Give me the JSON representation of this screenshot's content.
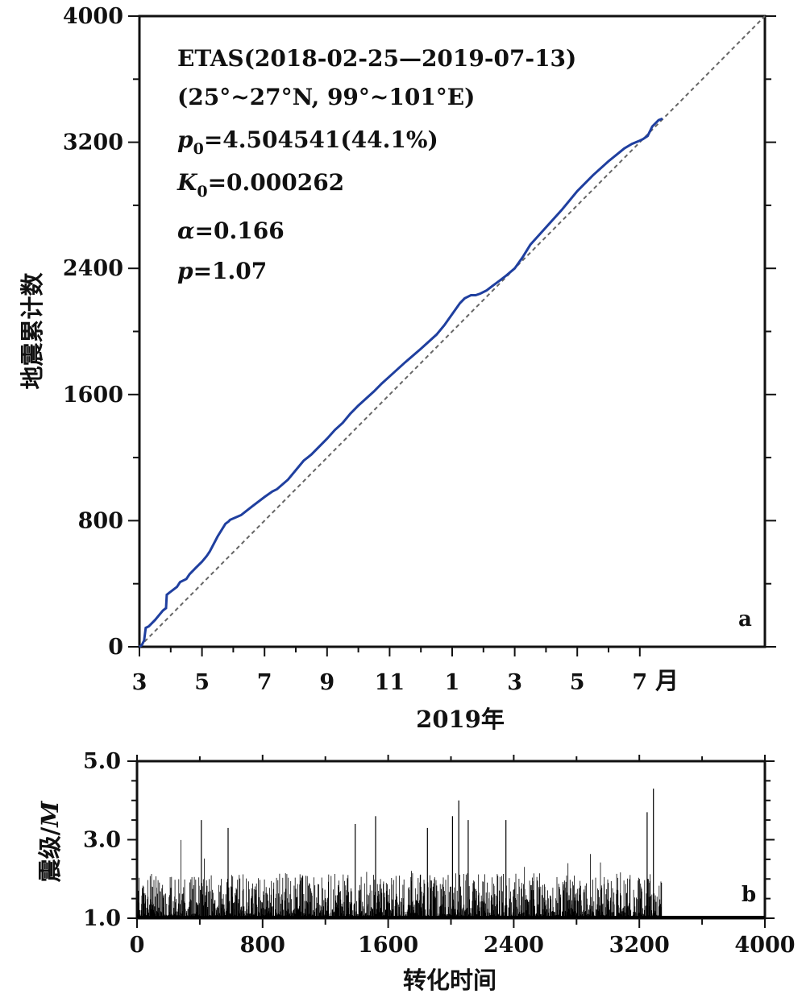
{
  "chart_data": [
    {
      "panel": "a",
      "type": "line",
      "ylabel": "地震累计数",
      "xlabel": "2019年",
      "x_unit_label": "月",
      "xlim": [
        0,
        4000
      ],
      "ylim": [
        0,
        4000
      ],
      "yticks": [
        "0",
        "800",
        "1600",
        "2400",
        "3200",
        "4000"
      ],
      "ytick_values": [
        0,
        800,
        1600,
        2400,
        3200,
        4000
      ],
      "xticks_month_labels": [
        "3",
        "5",
        "7",
        "9",
        "11",
        "1",
        "3",
        "5",
        "7"
      ],
      "xticks_month_positions": [
        0,
        400,
        800,
        1200,
        1600,
        2000,
        2400,
        2800,
        3200
      ],
      "annotations": [
        "ETAS(2018-02-25—2019-07-13)",
        "(25°~27°N, 99°~101°E)",
        "p0=4.504541(44.1%)",
        "K0=0.000262",
        "α=0.166",
        "p=1.07"
      ],
      "annotation_parts": {
        "line1": "ETAS(2018-02-25—2019-07-13)",
        "line2": "(25°~27°N, 99°~101°E)",
        "p0_sym": "p",
        "p0_sub": "0",
        "p0_val": "=4.504541(44.1%)",
        "k0_sym": "K",
        "k0_sub": "0",
        "k0_val": "=0.000262",
        "alpha_sym": "α",
        "alpha_val": "=0.166",
        "p_sym": "p",
        "p_val": "=1.07"
      },
      "series": [
        {
          "style": "solid",
          "color": "#1f3f9f",
          "x": [
            0,
            15,
            30,
            40,
            60,
            100,
            150,
            170,
            175,
            200,
            240,
            260,
            300,
            320,
            360,
            400,
            430,
            450,
            500,
            550,
            570,
            580,
            650,
            720,
            800,
            850,
            880,
            950,
            1050,
            1100,
            1200,
            1250,
            1300,
            1350,
            1400,
            1500,
            1550,
            1600,
            1700,
            1800,
            1900,
            1950,
            2000,
            2050,
            2080,
            2100,
            2120,
            2150,
            2180,
            2220,
            2260,
            2300,
            2340,
            2400,
            2450,
            2500,
            2600,
            2700,
            2800,
            2900,
            3000,
            3050,
            3100,
            3150,
            3200,
            3220,
            3250,
            3280,
            3300,
            3320,
            3345
          ],
          "y": [
            0,
            10,
            40,
            120,
            130,
            170,
            230,
            245,
            330,
            350,
            380,
            410,
            430,
            460,
            500,
            540,
            575,
            605,
            700,
            780,
            795,
            805,
            835,
            890,
            950,
            985,
            1000,
            1060,
            1180,
            1220,
            1320,
            1375,
            1420,
            1480,
            1530,
            1620,
            1670,
            1715,
            1805,
            1890,
            1980,
            2040,
            2110,
            2180,
            2210,
            2220,
            2230,
            2230,
            2240,
            2260,
            2290,
            2320,
            2350,
            2400,
            2470,
            2550,
            2660,
            2770,
            2890,
            2990,
            3080,
            3120,
            3160,
            3190,
            3210,
            3220,
            3240,
            3300,
            3320,
            3340,
            3350
          ]
        },
        {
          "style": "dashed",
          "color": "#666666",
          "x": [
            0,
            4000
          ],
          "y": [
            0,
            4000
          ]
        }
      ]
    },
    {
      "panel": "b",
      "type": "bar",
      "ylabel": "震级/M",
      "ylabel_main": "震级/",
      "ylabel_italic": "M",
      "xlabel": "转化时间",
      "xlim": [
        0,
        4000
      ],
      "ylim": [
        1.0,
        5.0
      ],
      "yticks": [
        "1.0",
        "3.0",
        "5.0"
      ],
      "ytick_values": [
        1.0,
        3.0,
        5.0
      ],
      "xticks": [
        "0",
        "800",
        "1600",
        "2400",
        "3200",
        "4000"
      ],
      "xtick_values": [
        0,
        800,
        1600,
        2400,
        3200,
        4000
      ],
      "data_extent": [
        0,
        3345
      ],
      "baseline": 1.0,
      "color": "#000000",
      "notable_values": [
        {
          "x": 410,
          "y": 3.5
        },
        {
          "x": 580,
          "y": 3.3
        },
        {
          "x": 1390,
          "y": 3.4
        },
        {
          "x": 1520,
          "y": 3.6
        },
        {
          "x": 1850,
          "y": 3.3
        },
        {
          "x": 2010,
          "y": 3.6
        },
        {
          "x": 2050,
          "y": 4.0
        },
        {
          "x": 2110,
          "y": 3.5
        },
        {
          "x": 2350,
          "y": 3.5
        },
        {
          "x": 3250,
          "y": 3.7
        },
        {
          "x": 3290,
          "y": 4.3
        }
      ]
    }
  ]
}
